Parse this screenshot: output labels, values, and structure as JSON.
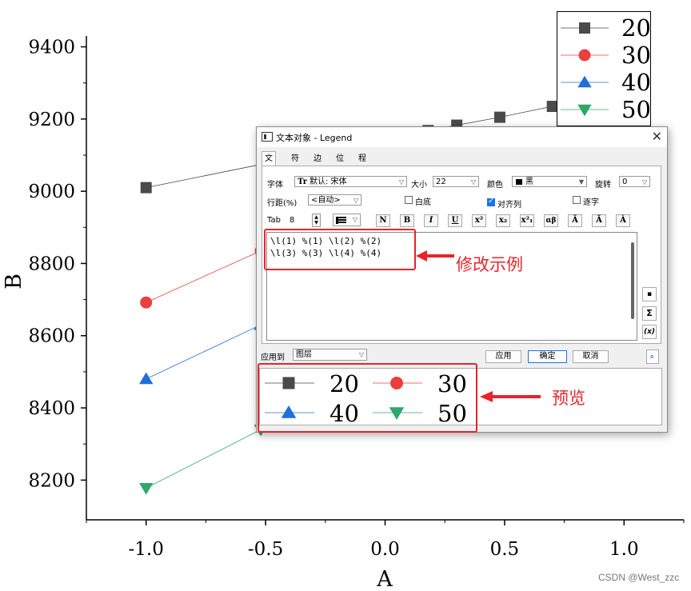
{
  "chart_data": {
    "type": "line",
    "xlabel": "A",
    "ylabel": "B",
    "xlim": [
      -1.25,
      1.25
    ],
    "ylim": [
      8090,
      9430
    ],
    "x_ticks": [
      -1.0,
      -0.5,
      0.0,
      0.5,
      1.0
    ],
    "x_tick_labels": [
      "-1.0",
      "-0.5",
      "0.0",
      "0.5",
      "1.0"
    ],
    "y_ticks": [
      8200,
      8400,
      8600,
      8800,
      9000,
      9200,
      9400
    ],
    "y_tick_labels": [
      "8200",
      "8400",
      "8600",
      "8800",
      "9000",
      "9200",
      "9400"
    ],
    "series": [
      {
        "name": "20",
        "marker": "square",
        "color": "#4a4a4a",
        "line_color": "#444444",
        "points": [
          [
            -1.0,
            9010
          ],
          [
            0.18,
            9168
          ],
          [
            0.3,
            9183
          ],
          [
            0.48,
            9205
          ],
          [
            0.7,
            9235
          ]
        ]
      },
      {
        "name": "30",
        "marker": "circle",
        "color": "#e8403f",
        "line_color": "#e8403f",
        "points": [
          [
            -1.0,
            8692
          ],
          [
            -0.52,
            8835
          ]
        ]
      },
      {
        "name": "40",
        "marker": "triangle-up",
        "color": "#1f6fd6",
        "line_color": "#1f6fd6",
        "points": [
          [
            -1.0,
            8480
          ],
          [
            -0.52,
            8630
          ]
        ]
      },
      {
        "name": "50",
        "marker": "triangle-down",
        "color": "#2ea86a",
        "line_color": "#2ea86a",
        "points": [
          [
            -1.0,
            8178
          ],
          [
            -0.52,
            8340
          ]
        ]
      }
    ],
    "legend_position": "top-right"
  },
  "dialog": {
    "title": "文本对象 - Legend",
    "close_glyph": "✕",
    "tabs": [
      "文本",
      "符号",
      "边框",
      "位置",
      "程序控制"
    ],
    "font_label": "字体",
    "font_value": "默认: 宋体",
    "font_icon_text": "Tr",
    "size_label": "大小",
    "size_value": "22",
    "color_label": "颜色",
    "color_value": "黑",
    "rotate_label": "旋转",
    "rotate_value": "0",
    "linespacing_label": "行距(%)",
    "linespacing_value": "<自动>",
    "white_bg_label": "白底",
    "white_bg_checked": false,
    "align_columns_label": "对齐列",
    "align_columns_checked": true,
    "char_by_char_label": "逐字",
    "char_by_char_checked": false,
    "tab_label": "Tab",
    "tab_value": "8",
    "format_buttons": [
      "N",
      "B",
      "I",
      "U",
      "x²",
      "x₂",
      "x²₁",
      "αβ",
      "Ā",
      "Ã",
      "Ȧ"
    ],
    "code_lines": [
      "\\l(1) %(1) \\l(2) %(2)",
      "\\l(3) %(3) \\l(4) %(4)"
    ],
    "side_buttons": [
      "▪",
      "Σ",
      "(x)"
    ],
    "apply_to_label": "应用到",
    "apply_to_value": "图层",
    "apply_button": "应用",
    "ok_button": "确定",
    "cancel_button": "取消",
    "collapse_glyph": "»"
  },
  "annotations": {
    "modify_example": "修改示例",
    "preview": "预览"
  },
  "watermark": "CSDN @West_zzc"
}
